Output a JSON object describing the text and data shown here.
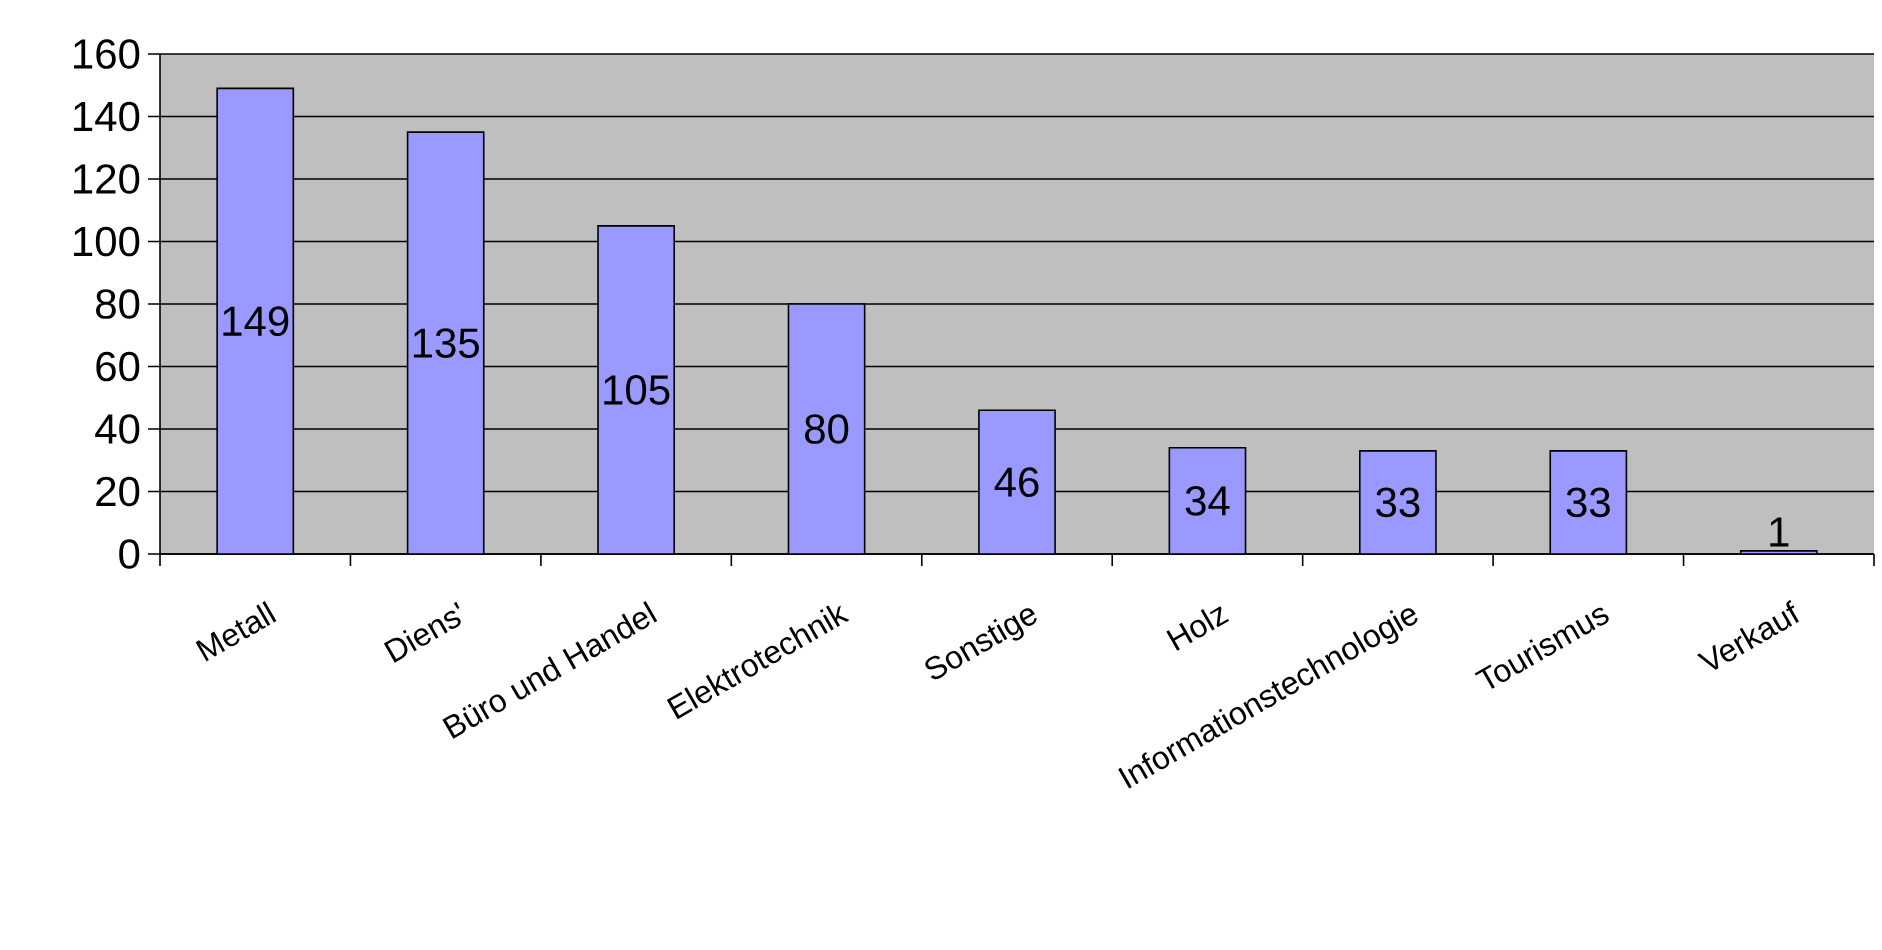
{
  "chart_data": {
    "type": "bar",
    "categories": [
      "Metall",
      "Diens'",
      "Büro und Handel",
      "Elektrotechnik",
      "Sonstige",
      "Holz",
      "Informationstechnologie",
      "Tourismus",
      "Verkauf"
    ],
    "values": [
      149,
      135,
      105,
      80,
      46,
      34,
      33,
      33,
      1
    ],
    "color": "#9999ff",
    "ylim": [
      0,
      160
    ],
    "yticks": [
      0,
      20,
      40,
      60,
      80,
      100,
      120,
      140,
      160
    ],
    "grid": "y",
    "data_labels": true
  }
}
